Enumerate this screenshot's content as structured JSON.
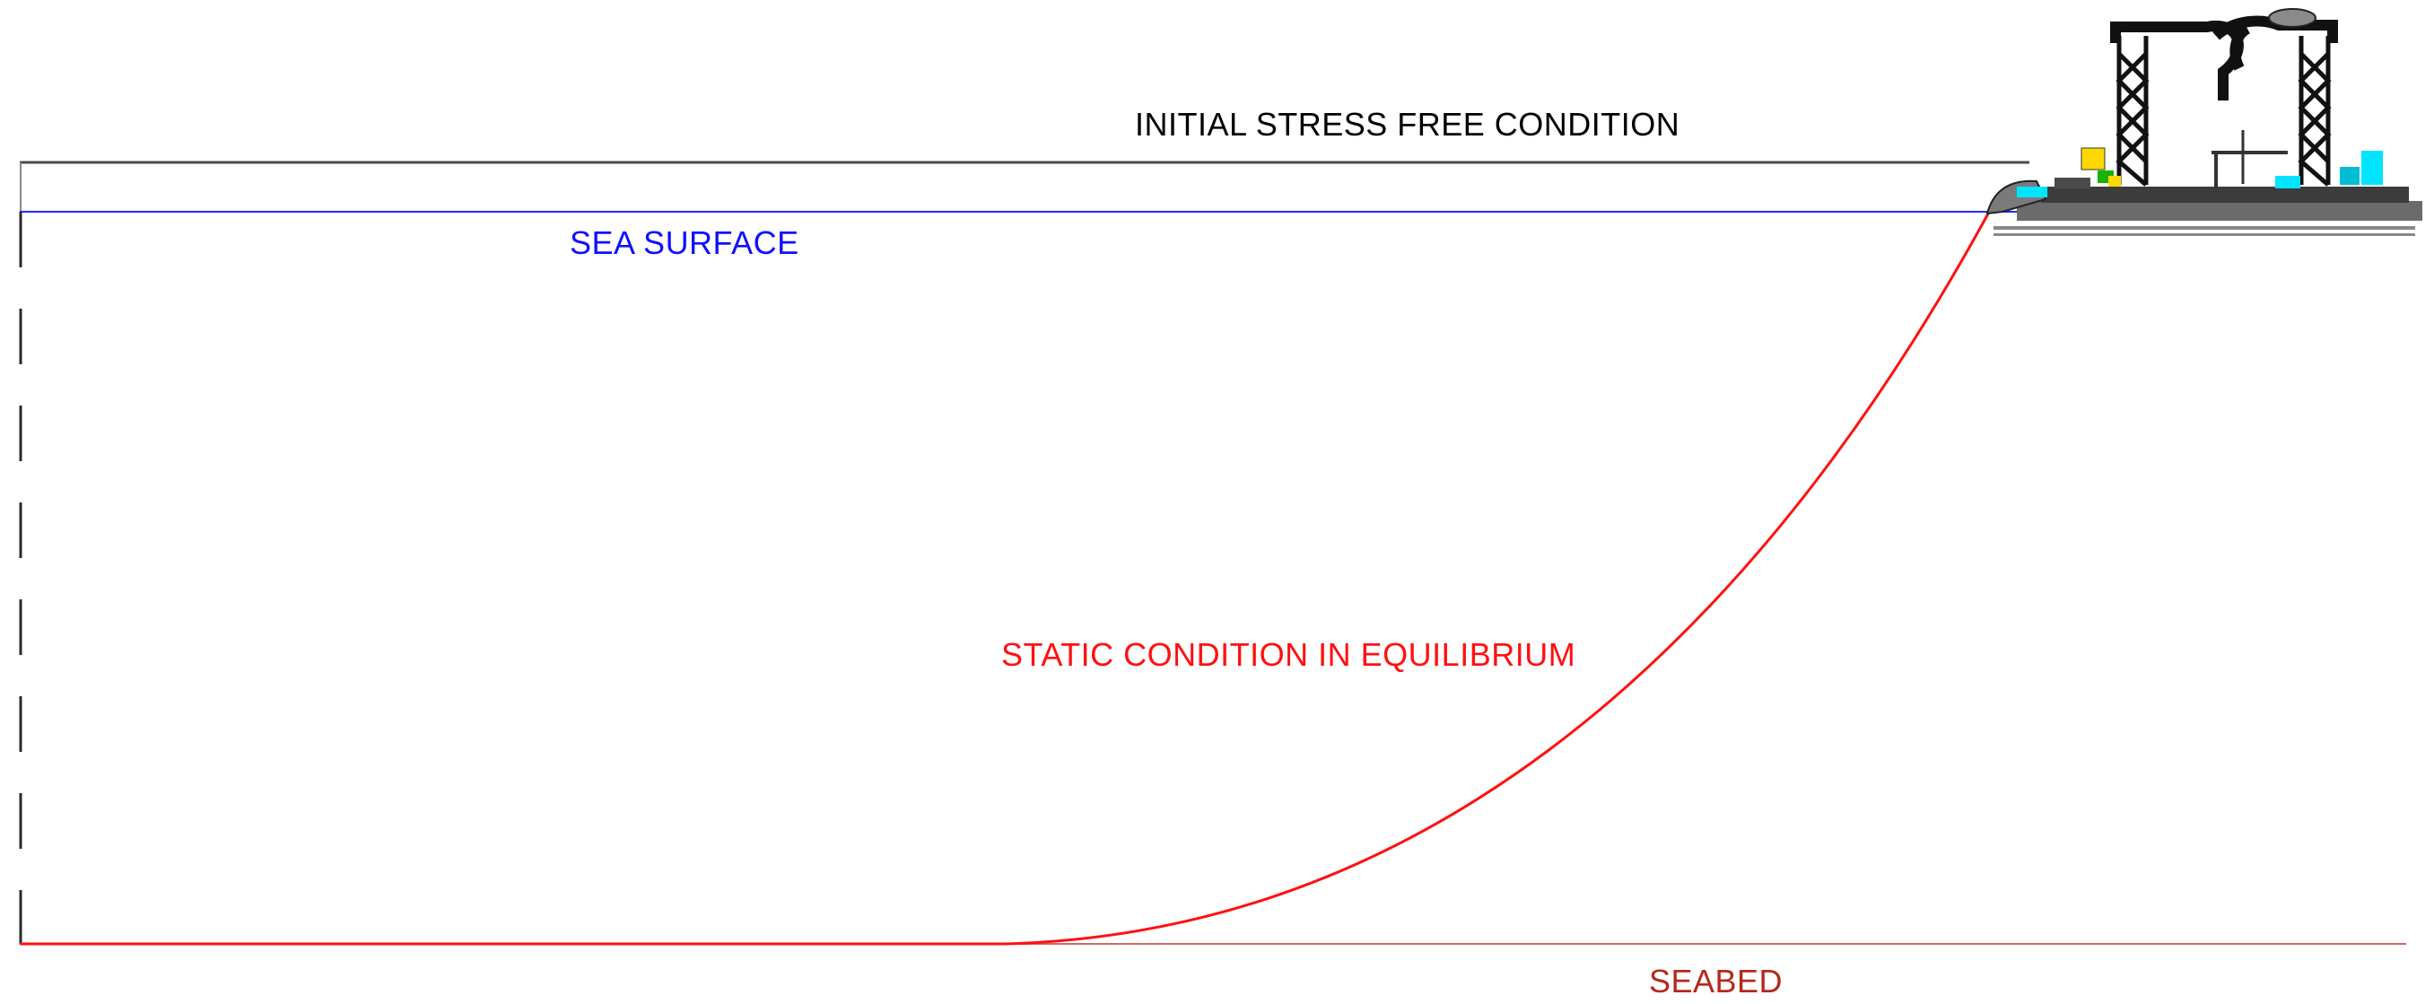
{
  "labels": {
    "initial": "INITIAL STRESS FREE CONDITION",
    "sea_surface": "SEA SURFACE",
    "static": "STATIC CONDITION IN EQUILIBRIUM",
    "seabed": "SEABED"
  },
  "colors": {
    "initial": "#000000",
    "sea_surface": "#0000ff",
    "static": "#ff0000",
    "seabed": "#c0392b",
    "dashed_riser": "#000000",
    "vessel_hull": "#5a5a5a",
    "vessel_frame": "#111111",
    "vessel_accent_cyan": "#00e5ff",
    "vessel_accent_yellow": "#ffd800",
    "vessel_accent_green": "#18b400"
  },
  "icons": {
    "vessel": "pipelay-vessel-icon"
  }
}
